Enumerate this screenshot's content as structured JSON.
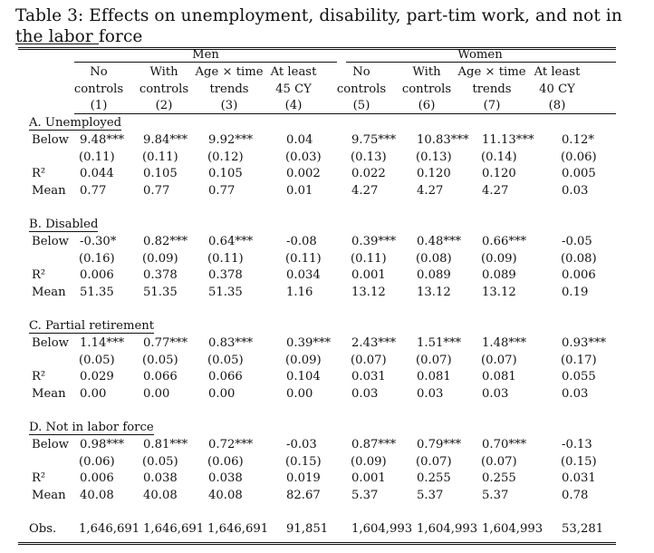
{
  "caption": "Table 3: Effects on unemployment, disability, part-tim work, and not in the labor force",
  "groups": [
    "Men",
    "Women"
  ],
  "headers": [
    {
      "l1": "No",
      "l2": "controls",
      "num": "(1)"
    },
    {
      "l1": "With",
      "l2": "controls",
      "num": "(2)"
    },
    {
      "l1": "Age × time",
      "l2": "trends",
      "num": "(3)"
    },
    {
      "l1": "At least",
      "l2": "45 CY",
      "num": "(4)"
    },
    {
      "l1": "No",
      "l2": "controls",
      "num": "(5)"
    },
    {
      "l1": "With",
      "l2": "controls",
      "num": "(6)"
    },
    {
      "l1": "Age × time",
      "l2": "trends",
      "num": "(7)"
    },
    {
      "l1": "At least",
      "l2": "40 CY",
      "num": "(8)"
    }
  ],
  "sections": [
    {
      "title": "A. Unemployed",
      "rows": [
        {
          "label": "Below",
          "values": [
            "9.48***",
            "9.84***",
            "9.92***",
            "0.04",
            "9.75***",
            "10.83***",
            "11.13***",
            "0.12*"
          ]
        },
        {
          "label": "",
          "values": [
            "(0.11)",
            "(0.11)",
            "(0.12)",
            "(0.03)",
            "(0.13)",
            "(0.13)",
            "(0.14)",
            "(0.06)"
          ]
        },
        {
          "label": "R²",
          "values": [
            "0.044",
            "0.105",
            "0.105",
            "0.002",
            "0.022",
            "0.120",
            "0.120",
            "0.005"
          ]
        },
        {
          "label": "Mean",
          "values": [
            "0.77",
            "0.77",
            "0.77",
            "0.01",
            "4.27",
            "4.27",
            "4.27",
            "0.03"
          ]
        }
      ]
    },
    {
      "title": "B. Disabled",
      "rows": [
        {
          "label": "Below",
          "values": [
            "-0.30*",
            "0.82***",
            "0.64***",
            "-0.08",
            "0.39***",
            "0.48***",
            "0.66***",
            "-0.05"
          ]
        },
        {
          "label": "",
          "values": [
            "(0.16)",
            "(0.09)",
            "(0.11)",
            "(0.11)",
            "(0.11)",
            "(0.08)",
            "(0.09)",
            "(0.08)"
          ]
        },
        {
          "label": "R²",
          "values": [
            "0.006",
            "0.378",
            "0.378",
            "0.034",
            "0.001",
            "0.089",
            "0.089",
            "0.006"
          ]
        },
        {
          "label": "Mean",
          "values": [
            "51.35",
            "51.35",
            "51.35",
            "1.16",
            "13.12",
            "13.12",
            "13.12",
            "0.19"
          ]
        }
      ]
    },
    {
      "title": "C. Partial retirement",
      "rows": [
        {
          "label": "Below",
          "values": [
            "1.14***",
            "0.77***",
            "0.83***",
            "0.39***",
            "2.43***",
            "1.51***",
            "1.48***",
            "0.93***"
          ]
        },
        {
          "label": "",
          "values": [
            "(0.05)",
            "(0.05)",
            "(0.05)",
            "(0.09)",
            "(0.07)",
            "(0.07)",
            "(0.07)",
            "(0.17)"
          ]
        },
        {
          "label": "R²",
          "values": [
            "0.029",
            "0.066",
            "0.066",
            "0.104",
            "0.031",
            "0.081",
            "0.081",
            "0.055"
          ]
        },
        {
          "label": "Mean",
          "values": [
            "0.00",
            "0.00",
            "0.00",
            "0.00",
            "0.03",
            "0.03",
            "0.03",
            "0.03"
          ]
        }
      ]
    },
    {
      "title": "D. Not in labor force",
      "rows": [
        {
          "label": "Below",
          "values": [
            "0.98***",
            "0.81***",
            "0.72***",
            "-0.03",
            "0.87***",
            "0.79***",
            "0.70***",
            "-0.13"
          ]
        },
        {
          "label": "",
          "values": [
            "(0.06)",
            "(0.05)",
            "(0.06)",
            "(0.15)",
            "(0.09)",
            "(0.07)",
            "(0.07)",
            "(0.15)"
          ]
        },
        {
          "label": "R²",
          "values": [
            "0.006",
            "0.038",
            "0.038",
            "0.019",
            "0.001",
            "0.255",
            "0.255",
            "0.031"
          ]
        },
        {
          "label": "Mean",
          "values": [
            "40.08",
            "40.08",
            "40.08",
            "82.67",
            "5.37",
            "5.37",
            "5.37",
            "0.78"
          ]
        }
      ]
    }
  ],
  "obs": {
    "label": "Obs.",
    "values": [
      "1,646,691",
      "1,646,691",
      "1,646,691",
      "91,851",
      "1,604,993",
      "1,604,993",
      "1,604,993",
      "53,281"
    ]
  }
}
